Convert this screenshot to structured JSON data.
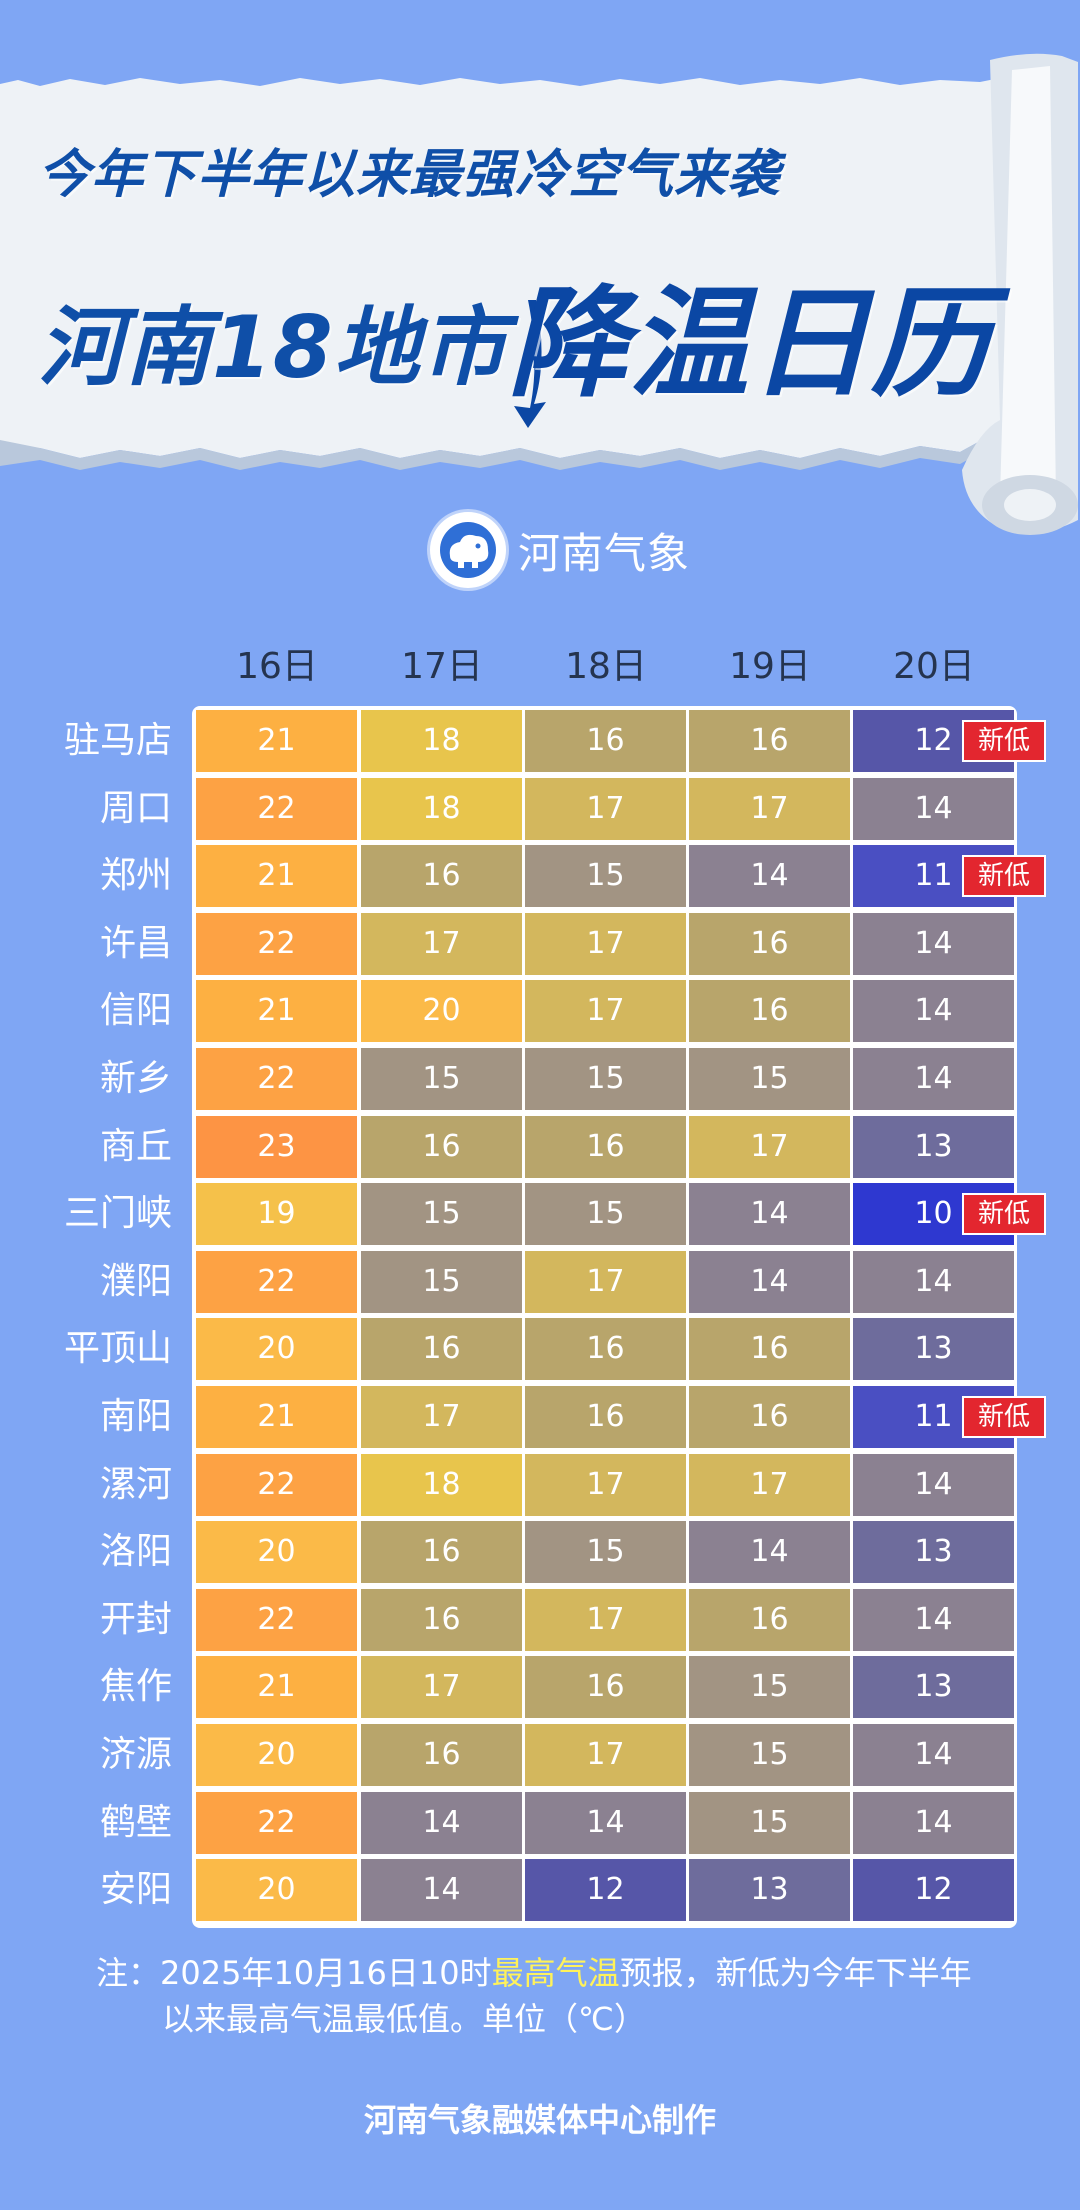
{
  "banner": {
    "title_line1": "今年下半年以来最强冷空气来袭",
    "title_line2_a": "河南18地市",
    "title_line2_b": "降温日历",
    "paper_color": "#eef2f6",
    "title_color": "#0f4fa8"
  },
  "logo": {
    "icon": "cloud-elephant-icon",
    "text": "河南气象"
  },
  "chart_data": {
    "type": "table",
    "unit": "℃",
    "columns": [
      "16日",
      "17日",
      "18日",
      "19日",
      "20日"
    ],
    "rows": [
      {
        "city": "驻马店",
        "values": [
          21,
          18,
          16,
          16,
          12
        ],
        "badge": "新低"
      },
      {
        "city": "周口",
        "values": [
          22,
          18,
          17,
          17,
          14
        ]
      },
      {
        "city": "郑州",
        "values": [
          21,
          16,
          15,
          14,
          11
        ],
        "badge": "新低"
      },
      {
        "city": "许昌",
        "values": [
          22,
          17,
          17,
          16,
          14
        ]
      },
      {
        "city": "信阳",
        "values": [
          21,
          20,
          17,
          16,
          14
        ]
      },
      {
        "city": "新乡",
        "values": [
          22,
          15,
          15,
          15,
          14
        ]
      },
      {
        "city": "商丘",
        "values": [
          23,
          16,
          16,
          17,
          13
        ]
      },
      {
        "city": "三门峡",
        "values": [
          19,
          15,
          15,
          14,
          10
        ],
        "badge": "新低"
      },
      {
        "city": "濮阳",
        "values": [
          22,
          15,
          17,
          14,
          14
        ]
      },
      {
        "city": "平顶山",
        "values": [
          20,
          16,
          16,
          16,
          13
        ]
      },
      {
        "city": "南阳",
        "values": [
          21,
          17,
          16,
          16,
          11
        ],
        "badge": "新低"
      },
      {
        "city": "漯河",
        "values": [
          22,
          18,
          17,
          17,
          14
        ]
      },
      {
        "city": "洛阳",
        "values": [
          20,
          16,
          15,
          14,
          13
        ]
      },
      {
        "city": "开封",
        "values": [
          22,
          16,
          17,
          16,
          14
        ]
      },
      {
        "city": "焦作",
        "values": [
          21,
          17,
          16,
          15,
          13
        ]
      },
      {
        "city": "济源",
        "values": [
          20,
          16,
          17,
          15,
          14
        ]
      },
      {
        "city": "鹤壁",
        "values": [
          22,
          14,
          14,
          15,
          14
        ]
      },
      {
        "city": "安阳",
        "values": [
          20,
          14,
          12,
          13,
          12
        ]
      }
    ],
    "color_scale": {
      "10": "#2e38d0",
      "11": "#4a4fc2",
      "12": "#5656a8",
      "13": "#6e6c9c",
      "14": "#8b8191",
      "15": "#a29483",
      "16": "#b8a56b",
      "17": "#d3b75d",
      "18": "#e8c54c",
      "19": "#f5c14a",
      "20": "#fbba48",
      "21": "#fdb042",
      "22": "#fda244",
      "23": "#fd9444"
    },
    "badge_color": "#e3262f"
  },
  "note": {
    "prefix": "注：2025年10月16日10时",
    "highlight": "最高气温",
    "suffix": "预报，新低为今年下半年",
    "line2": "以来最高气温最低值。单位（℃）",
    "highlight_color": "#fff25a"
  },
  "footer": "河南气象融媒体中心制作"
}
